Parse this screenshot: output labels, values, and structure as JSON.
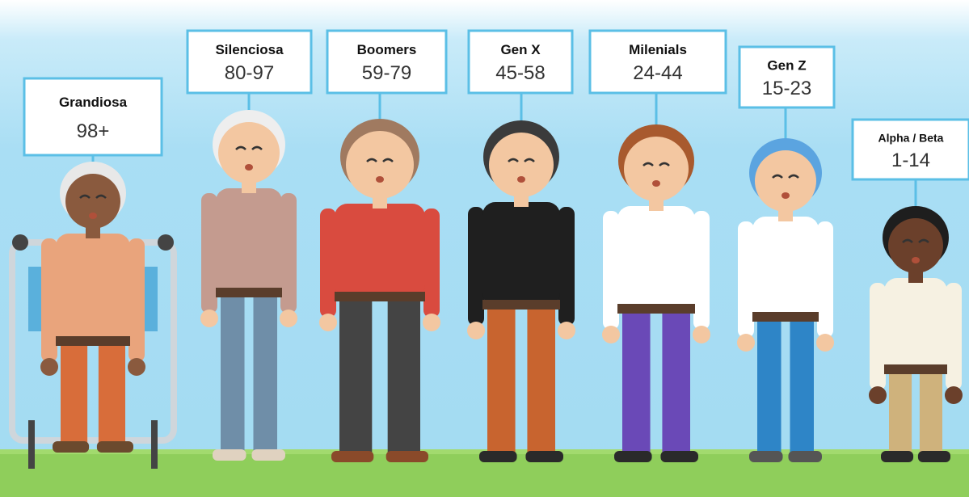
{
  "generations": [
    {
      "name": "Grandiosa",
      "range": "98+"
    },
    {
      "name": "Silenciosa",
      "range": "80-97"
    },
    {
      "name": "Boomers",
      "range": "59-79"
    },
    {
      "name": "Gen X",
      "range": "45-58"
    },
    {
      "name": "Milenials",
      "range": "24-44"
    },
    {
      "name": "Gen Z",
      "range": "15-23"
    },
    {
      "name": "Alpha / Beta",
      "range": "1-14"
    }
  ]
}
